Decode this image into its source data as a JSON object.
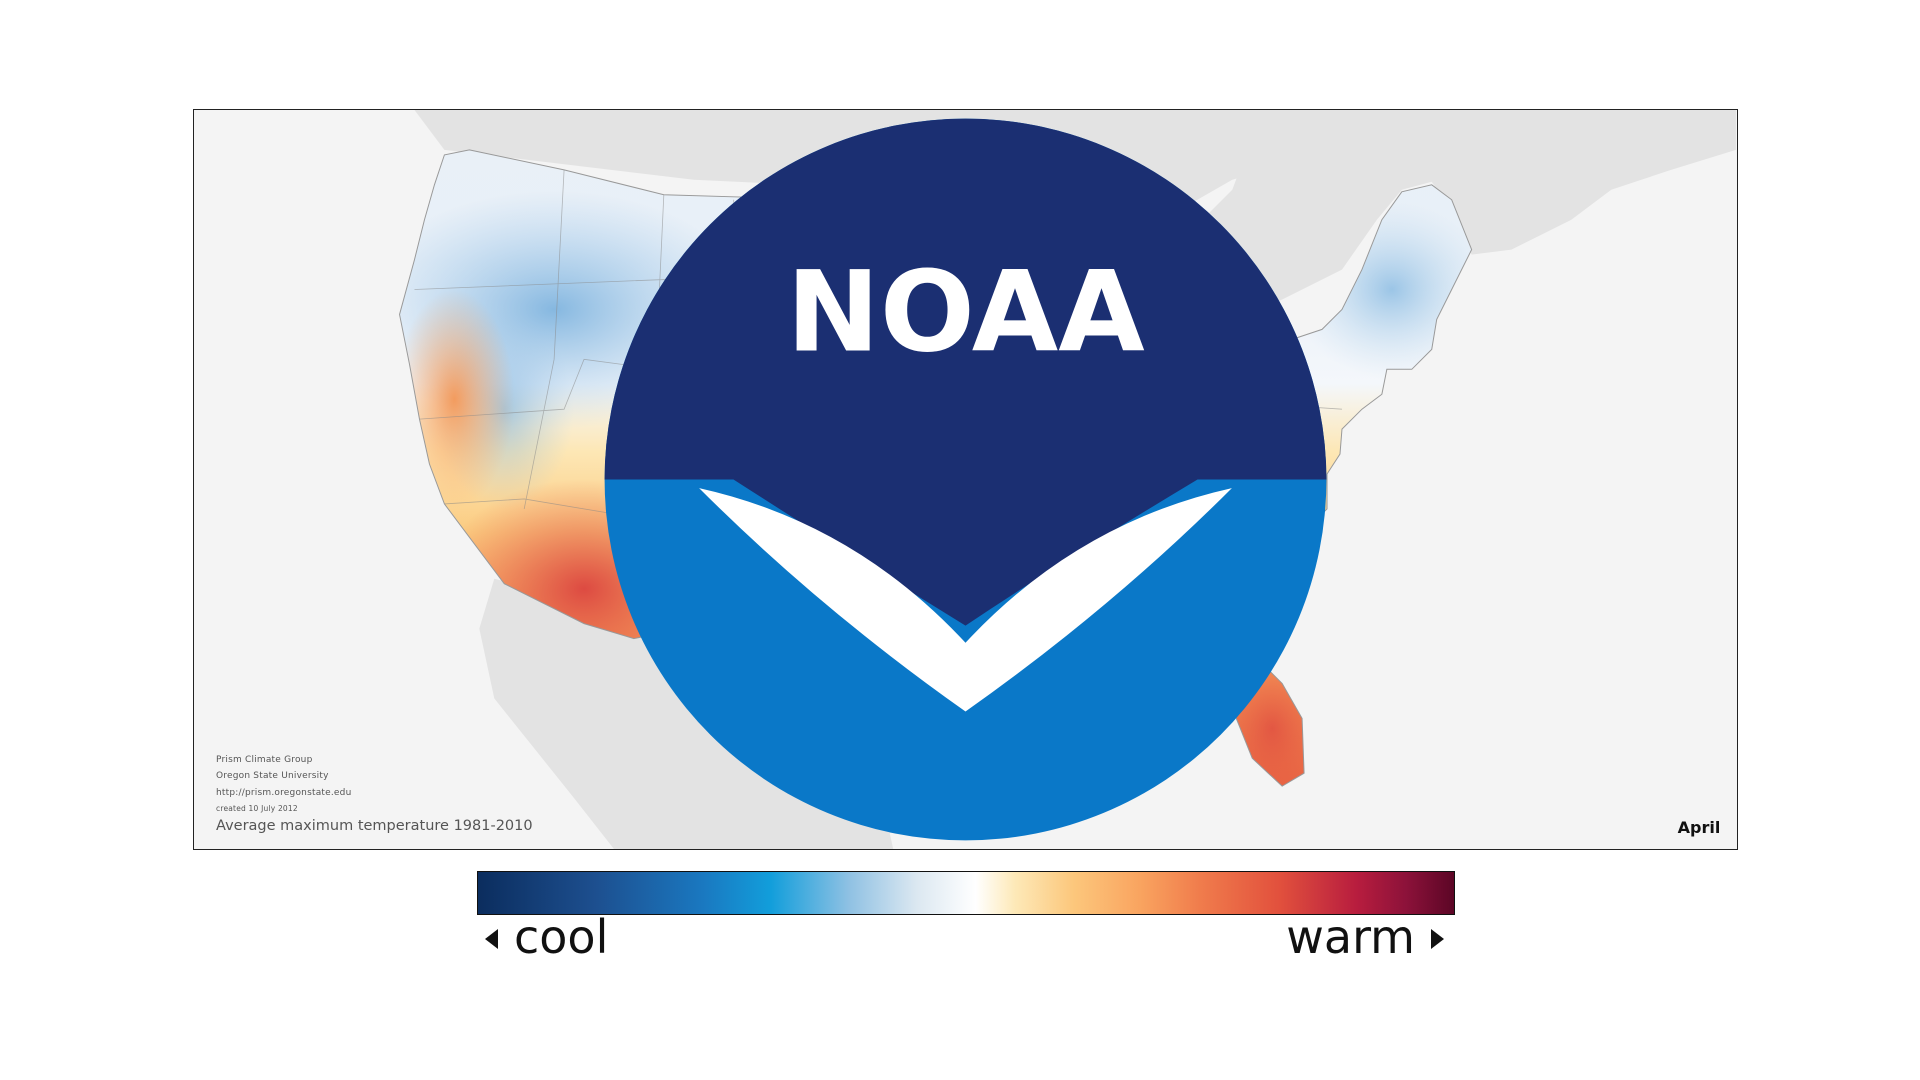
{
  "map": {
    "credits": {
      "line1": "Prism Climate Group",
      "line2": "Oregon State University",
      "line3": "http://prism.oregonstate.edu",
      "line4": "created 10 July 2012"
    },
    "caption": "Average maximum temperature 1981-2010",
    "month": "April",
    "logo_text": "NOAA"
  },
  "legend": {
    "cool_label": "cool",
    "warm_label": "warm",
    "colors": [
      "#0b2d5e",
      "#129edb",
      "#ffffff",
      "#fcc77c",
      "#e2513d",
      "#5c0626"
    ]
  },
  "colors": {
    "land_background": "#e2e2e2",
    "ocean_background": "#f4f4f4",
    "cool_region": "#dbe9f4",
    "warm_region": "#ef7a4f"
  }
}
